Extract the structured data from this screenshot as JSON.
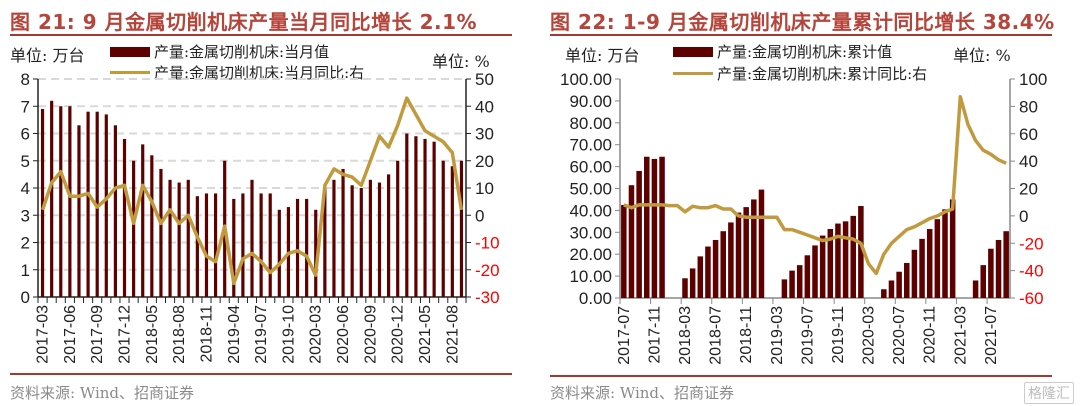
{
  "chart_data": [
    {
      "type": "bar",
      "title": "图 21:  9 月金属切削机床产量当月同比增长 2.1%",
      "left_unit": "单位:  万台",
      "right_unit": "单位:  %",
      "source": "资料来源:  Wind、招商证券",
      "series": [
        {
          "name": "产量:金属切削机床:当月值",
          "kind": "bar",
          "axis": "left",
          "color": "#5c0000",
          "values": [
            6.9,
            7.2,
            7.0,
            7.0,
            6.3,
            6.8,
            6.8,
            6.7,
            6.3,
            5.8,
            5.0,
            5.6,
            5.2,
            4.7,
            4.3,
            4.2,
            4.3,
            3.7,
            3.8,
            3.8,
            5.0,
            3.6,
            3.8,
            4.3,
            3.8,
            3.8,
            3.2,
            3.3,
            3.6,
            3.6,
            3.2,
            4.1,
            4.3,
            4.7,
            4.1,
            4.0,
            4.3,
            4.2,
            4.5,
            5.0,
            6.0,
            5.9,
            5.8,
            5.7,
            5.0,
            4.8,
            5.0
          ]
        },
        {
          "name": "产量:金属切削机床:当月同比:右",
          "kind": "line",
          "axis": "right",
          "color": "#c19a3e",
          "values": [
            2,
            12,
            16,
            7,
            7,
            8,
            3,
            6,
            10,
            11,
            -3,
            11,
            5,
            -3,
            2,
            -3,
            0,
            -8,
            -15,
            -17,
            -4,
            -25,
            -16,
            -14,
            -17,
            -21,
            -18,
            -14,
            -13,
            -15,
            -22,
            11,
            17,
            15,
            14,
            11,
            20,
            29,
            25,
            33,
            43,
            37,
            31,
            29,
            27,
            23,
            2
          ]
        }
      ],
      "categories": [
        "2017-03",
        "2017-04",
        "2017-05",
        "2017-06",
        "2017-07",
        "2017-08",
        "2017-09",
        "2017-10",
        "2017-11",
        "2017-12",
        "2018-03",
        "2018-04",
        "2018-05",
        "2018-06",
        "2018-07",
        "2018-08",
        "2018-09",
        "2018-10",
        "2018-11",
        "2018-12",
        "2019-03",
        "2019-04",
        "2019-05",
        "2019-06",
        "2019-07",
        "2019-08",
        "2019-09",
        "2019-10",
        "2019-11",
        "2019-12",
        "2020-03",
        "2020-04",
        "2020-05",
        "2020-06",
        "2020-07",
        "2020-08",
        "2020-09",
        "2020-10",
        "2020-11",
        "2020-12",
        "2021-03",
        "2021-04",
        "2021-05",
        "2021-06",
        "2021-07",
        "2021-08",
        "2021-09"
      ],
      "tick_labels": [
        "2017-03",
        "2017-06",
        "2017-09",
        "2017-12",
        "2018-05",
        "2018-08",
        "2018-11",
        "2019-04",
        "2019-07",
        "2019-10",
        "2020-03",
        "2020-06",
        "2020-09",
        "2020-12",
        "2021-05",
        "2021-08"
      ],
      "left_axis": {
        "ylim": [
          0,
          8
        ],
        "ticks": [
          "0",
          "1",
          "2",
          "3",
          "4",
          "5",
          "6",
          "7",
          "8"
        ]
      },
      "right_axis": {
        "ylim": [
          -30,
          50
        ],
        "ticks": [
          "-30",
          "-20",
          "-10",
          "0",
          "10",
          "20",
          "30",
          "40",
          "50"
        ],
        "negative_color": "#ff0000"
      },
      "grid": true,
      "legend_position": "top"
    },
    {
      "type": "bar",
      "title": "图 22:  1-9 月金属切削机床产量累计同比增长 38.4%",
      "left_unit": "单位:  万台",
      "right_unit": "单位:  %",
      "source": "资料来源:  Wind、招商证券",
      "series": [
        {
          "name": "产量:金属切削机床:累计值",
          "kind": "bar",
          "axis": "left",
          "color": "#5c0000",
          "values": [
            42.5,
            51.5,
            58,
            64.5,
            63.5,
            64.5,
            null,
            null,
            9,
            13.5,
            19,
            23.5,
            26.5,
            30.5,
            34.5,
            39,
            41.5,
            45,
            49.5,
            null,
            null,
            8.5,
            12.5,
            15,
            19.5,
            24,
            28.5,
            31.5,
            34,
            35,
            37.5,
            42,
            null,
            null,
            4,
            8,
            12,
            16,
            22,
            27,
            31.5,
            36,
            40.5,
            45,
            null,
            null,
            8,
            15,
            22.5,
            26.5,
            30.5
          ]
        },
        {
          "name": "产量:金属切削机床:累计同比:右",
          "kind": "line",
          "axis": "right",
          "color": "#c19a3e",
          "values": [
            8,
            6,
            8,
            8,
            8,
            8,
            7.5,
            7.5,
            3,
            7,
            6,
            6,
            7.5,
            5,
            5,
            0,
            -1,
            -1,
            -1,
            -1,
            -1,
            -10,
            -10,
            -12,
            -14,
            -16,
            -18,
            -17,
            -15,
            -16,
            -17,
            -20,
            -35,
            -42,
            -28,
            -20,
            -15,
            -10,
            -8,
            -5,
            -2,
            0,
            3,
            5,
            87,
            67,
            55,
            48,
            45,
            41,
            38.4
          ]
        }
      ],
      "categories": [
        "2017-07",
        "2017-08",
        "2017-09",
        "2017-10",
        "2017-11",
        "2017-12",
        "2018-01",
        "2018-02",
        "2018-03",
        "2018-04",
        "2018-05",
        "2018-06",
        "2018-07",
        "2018-08",
        "2018-09",
        "2018-10",
        "2018-11",
        "2018-12",
        "2019-01",
        "2019-02",
        "2019-03",
        "2019-04",
        "2019-05",
        "2019-06",
        "2019-07",
        "2019-08",
        "2019-09",
        "2019-10",
        "2019-11",
        "2019-12",
        "2020-01",
        "2020-02",
        "2020-03",
        "2020-04",
        "2020-05",
        "2020-06",
        "2020-07",
        "2020-08",
        "2020-09",
        "2020-10",
        "2020-11",
        "2020-12",
        "2021-01",
        "2021-02",
        "2021-03",
        "2021-04",
        "2021-05",
        "2021-06",
        "2021-07",
        "2021-08",
        "2021-09"
      ],
      "tick_labels": [
        "2017-07",
        "2017-11",
        "2018-03",
        "2018-07",
        "2018-11",
        "2019-03",
        "2019-07",
        "2019-11",
        "2020-03",
        "2020-07",
        "2020-11",
        "2021-03",
        "2021-07"
      ],
      "left_axis": {
        "ylim": [
          0,
          100
        ],
        "ticks": [
          "0.00",
          "10.00",
          "20.00",
          "30.00",
          "40.00",
          "50.00",
          "60.00",
          "70.00",
          "80.00",
          "90.00",
          "100.00"
        ]
      },
      "right_axis": {
        "ylim": [
          -60,
          100
        ],
        "ticks": [
          "-60",
          "-40",
          "-20",
          "0",
          "20",
          "40",
          "60",
          "80",
          "100"
        ],
        "negative_color": "#ff0000"
      },
      "grid": false,
      "legend_position": "top"
    }
  ],
  "watermark": "格隆汇"
}
